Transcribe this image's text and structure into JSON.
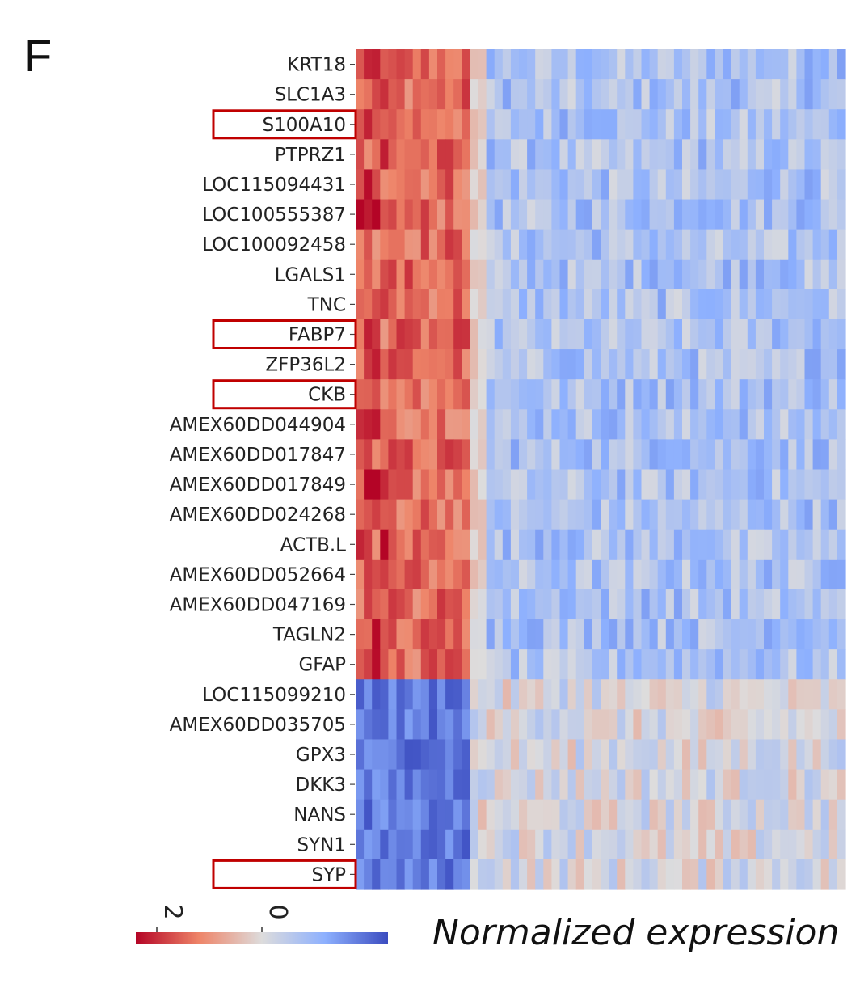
{
  "panel_label": "F",
  "colors": {
    "low": "#3b4cc0",
    "mid": "#dddcdc",
    "high": "#b40426",
    "highlight_box": "#c00000"
  },
  "chart_data": {
    "type": "heatmap",
    "rows": [
      "KRT18",
      "SLC1A3",
      "S100A10",
      "PTPRZ1",
      "LOC115094431",
      "LOC100555387",
      "LOC100092458",
      "LGALS1",
      "TNC",
      "FABP7",
      "ZFP36L2",
      "CKB",
      "AMEX60DD044904",
      "AMEX60DD017847",
      "AMEX60DD017849",
      "AMEX60DD024268",
      "ACTB.L",
      "AMEX60DD052664",
      "AMEX60DD047169",
      "TAGLN2",
      "GFAP",
      "LOC115099210",
      "AMEX60DD035705",
      "GPX3",
      "DKK3",
      "NANS",
      "SYN1",
      "SYP"
    ],
    "highlighted_rows": [
      "S100A10",
      "FABP7",
      "CKB",
      "SYP"
    ],
    "n_columns": 60,
    "n_upregulated_genes": 21,
    "high_columns": 14,
    "cell_states": "upregulated genes high in first columns and low elsewhere; downregulated genes low in first columns and mildly high elsewhere",
    "colorbar": {
      "title": "Normalized expression",
      "ticks": [
        {
          "value": 2,
          "label": "2"
        },
        {
          "value": 0,
          "label": "0"
        }
      ],
      "range": [
        2.4,
        -2.4
      ],
      "colormap": "coolwarm (reversed)"
    }
  }
}
